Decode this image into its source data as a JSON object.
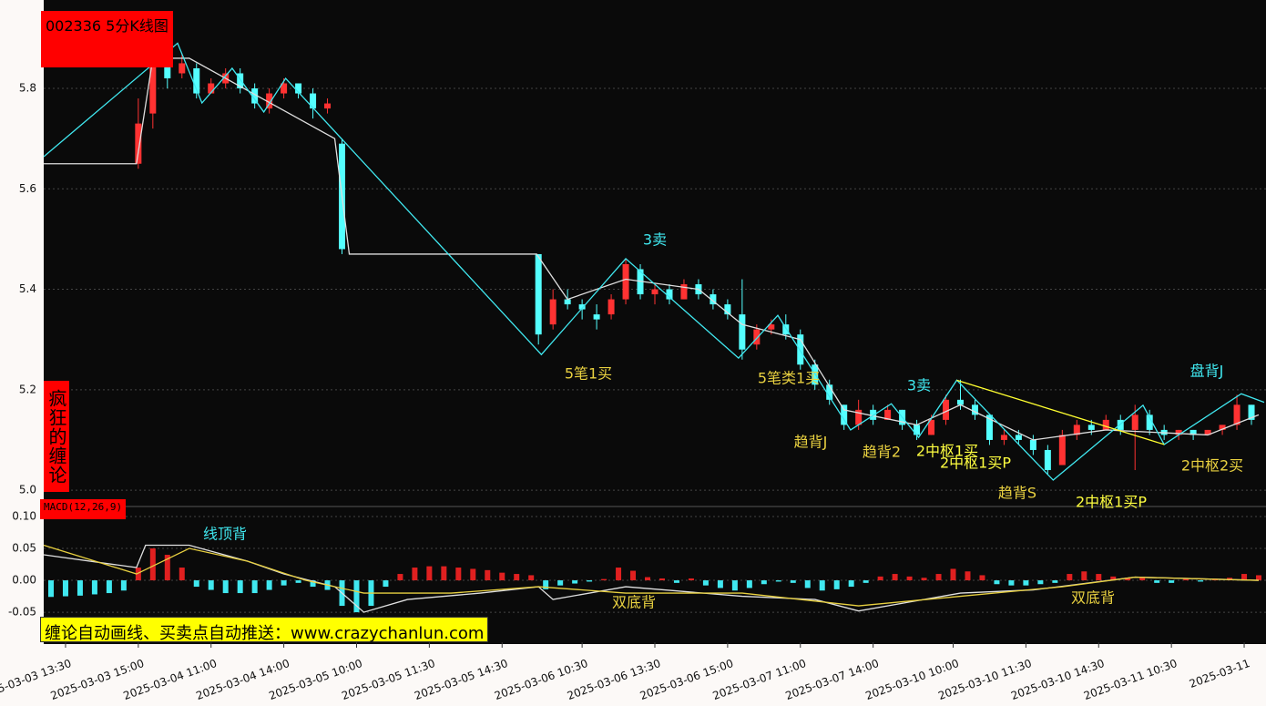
{
  "header": {
    "title": "002336 5分K线图",
    "side_title": "疯狂的缠论",
    "banner": "缠论自动画线、买卖点自动推送：www.crazychanlun.com"
  },
  "chart_data": [
    {
      "type": "candlestick",
      "xlim": [
        0,
        168
      ],
      "ylim": [
        4.982,
        5.976
      ],
      "yticks": [
        {
          "value": 5,
          "label": "5.0"
        },
        5.2,
        5.4,
        5.6,
        5.8
      ],
      "grid": true,
      "up_color": "#ff3232",
      "down_color": "#54ffff",
      "x": [
        13,
        15,
        17,
        19,
        21,
        23,
        25,
        27,
        29,
        31,
        33,
        35,
        37,
        39,
        41,
        68,
        70,
        72,
        74,
        76,
        78,
        80,
        82,
        84,
        86,
        88,
        90,
        92,
        94,
        96,
        98,
        100,
        102,
        104,
        106,
        108,
        110,
        112,
        114,
        116,
        118,
        120,
        122,
        124,
        126,
        128,
        130,
        132,
        134,
        136,
        138,
        140,
        142,
        144,
        146,
        148,
        150,
        152,
        154,
        156,
        158,
        160,
        162,
        164,
        166
      ],
      "open": [
        5.65,
        5.75,
        5.86,
        5.83,
        5.84,
        5.79,
        5.81,
        5.83,
        5.8,
        5.76,
        5.79,
        5.81,
        5.79,
        5.76,
        5.69,
        5.47,
        5.33,
        5.38,
        5.37,
        5.35,
        5.35,
        5.38,
        5.44,
        5.39,
        5.4,
        5.38,
        5.41,
        5.39,
        5.37,
        5.35,
        5.29,
        5.32,
        5.33,
        5.31,
        5.25,
        5.21,
        5.17,
        5.13,
        5.16,
        5.14,
        5.16,
        5.13,
        5.11,
        5.14,
        5.18,
        5.17,
        5.15,
        5.1,
        5.11,
        5.1,
        5.08,
        5.05,
        5.11,
        5.13,
        5.12,
        5.14,
        5.12,
        5.15,
        5.12,
        5.11,
        5.12,
        5.11,
        5.12,
        5.13,
        5.17
      ],
      "high": [
        5.78,
        5.9,
        5.88,
        5.87,
        5.85,
        5.82,
        5.84,
        5.84,
        5.81,
        5.8,
        5.82,
        5.81,
        5.8,
        5.78,
        5.7,
        5.47,
        5.4,
        5.4,
        5.38,
        5.37,
        5.39,
        5.46,
        5.45,
        5.41,
        5.41,
        5.42,
        5.42,
        5.4,
        5.38,
        5.42,
        5.33,
        5.34,
        5.35,
        5.32,
        5.26,
        5.22,
        5.17,
        5.18,
        5.17,
        5.17,
        5.16,
        5.14,
        5.15,
        5.19,
        5.22,
        5.18,
        5.15,
        5.12,
        5.12,
        5.11,
        5.09,
        5.12,
        5.14,
        5.14,
        5.15,
        5.15,
        5.17,
        5.16,
        5.13,
        5.12,
        5.12,
        5.12,
        5.13,
        5.19,
        5.17
      ],
      "low": [
        5.64,
        5.72,
        5.8,
        5.82,
        5.78,
        5.79,
        5.8,
        5.79,
        5.76,
        5.75,
        5.78,
        5.78,
        5.74,
        5.75,
        5.47,
        5.29,
        5.32,
        5.36,
        5.34,
        5.32,
        5.34,
        5.37,
        5.38,
        5.37,
        5.37,
        5.38,
        5.38,
        5.36,
        5.34,
        5.26,
        5.28,
        5.31,
        5.3,
        5.24,
        5.2,
        5.17,
        5.12,
        5.12,
        5.13,
        5.14,
        5.12,
        5.1,
        5.11,
        5.13,
        5.16,
        5.14,
        5.09,
        5.09,
        5.09,
        5.07,
        5.03,
        5.05,
        5.1,
        5.11,
        5.12,
        5.11,
        5.04,
        5.11,
        5.1,
        5.1,
        5.1,
        5.11,
        5.11,
        5.12,
        5.13
      ],
      "close": [
        5.73,
        5.86,
        5.82,
        5.85,
        5.79,
        5.81,
        5.83,
        5.8,
        5.77,
        5.79,
        5.81,
        5.79,
        5.76,
        5.77,
        5.48,
        5.31,
        5.38,
        5.37,
        5.36,
        5.34,
        5.38,
        5.45,
        5.39,
        5.4,
        5.38,
        5.41,
        5.39,
        5.37,
        5.35,
        5.28,
        5.32,
        5.33,
        5.31,
        5.25,
        5.21,
        5.18,
        5.13,
        5.16,
        5.14,
        5.16,
        5.13,
        5.11,
        5.14,
        5.18,
        5.17,
        5.15,
        5.1,
        5.11,
        5.1,
        5.08,
        5.04,
        5.11,
        5.13,
        5.12,
        5.14,
        5.12,
        5.15,
        5.12,
        5.11,
        5.12,
        5.11,
        5.12,
        5.13,
        5.17,
        5.14
      ],
      "overlays": [
        {
          "type": "line",
          "color": "#dddddd",
          "x": [
            0,
            12.75,
            15,
            20,
            30,
            40,
            42,
            67.75,
            72,
            80,
            90,
            96,
            104,
            110,
            120,
            126,
            136,
            146,
            160,
            167
          ],
          "values": [
            5.65,
            5.65,
            5.86,
            5.86,
            5.78,
            5.7,
            5.47,
            5.47,
            5.38,
            5.42,
            5.4,
            5.33,
            5.3,
            5.16,
            5.13,
            5.17,
            5.1,
            5.12,
            5.11,
            5.15
          ]
        },
        {
          "type": "line",
          "color": "#40e8f0",
          "x": [
            0,
            18.4,
            21.75,
            25.9,
            30.25,
            33.25,
            68.4,
            80,
            95.5,
            100.9,
            110.9,
            116.5,
            120.25,
            125.5,
            138.75,
            151.1,
            154,
            164.6,
            167.75
          ],
          "values": [
            5.664,
            5.89,
            5.771,
            5.84,
            5.753,
            5.82,
            5.27,
            5.461,
            5.263,
            5.348,
            5.12,
            5.172,
            5.105,
            5.219,
            5.02,
            5.169,
            5.091,
            5.192,
            5.175
          ]
        },
        {
          "type": "line",
          "color": "#ffff30",
          "x": [
            125.5,
            154
          ],
          "values": [
            5.219,
            5.091
          ]
        }
      ],
      "annotations": [
        {
          "text": "3卖",
          "color": "#40e8f0"
        },
        {
          "text": "5笔1买",
          "color": "#e8d040"
        },
        {
          "text": "5笔类1买",
          "color": "#e8d040"
        },
        {
          "text": "趋背J",
          "color": "#e8d040"
        },
        {
          "text": "3卖",
          "color": "#40e8f0"
        },
        {
          "text": "趋背2",
          "color": "#e8d040"
        },
        {
          "text": "2中枢1买",
          "color": "#ffff40"
        },
        {
          "text": "2中枢1买P",
          "color": "#ffff40"
        },
        {
          "text": "趋背S",
          "color": "#e8d040"
        },
        {
          "text": "2中枢1买P",
          "color": "#ffff40"
        },
        {
          "text": "2中枢2买",
          "color": "#e8d040"
        },
        {
          "text": "盘背J",
          "color": "#40e8f0"
        }
      ]
    },
    {
      "type": "macd",
      "title": "MACD(12,26,9)",
      "xlim": [
        0,
        168
      ],
      "ylim": [
        -0.097,
        0.1
      ],
      "yticks": [
        {
          "value": -0.05,
          "label": "-0.05"
        },
        {
          "value": 0,
          "label": "0.00"
        },
        {
          "value": 0.05,
          "label": "0.05"
        },
        {
          "value": 0.1,
          "label": "0.10"
        }
      ],
      "grid": true,
      "xticks": [
        {
          "value": 3,
          "label": "2025-03-03 13:30"
        },
        {
          "value": 13,
          "label": "2025-03-03 15:00"
        },
        {
          "value": 23,
          "label": "2025-03-04 11:00"
        },
        {
          "value": 33,
          "label": "2025-03-04 14:00"
        },
        {
          "value": 43,
          "label": "2025-03-05 10:00"
        },
        {
          "value": 53,
          "label": "2025-03-05 11:30"
        },
        {
          "value": 63,
          "label": "2025-03-05 14:30"
        },
        {
          "value": 74,
          "label": "2025-03-06 10:30"
        },
        {
          "value": 84,
          "label": "2025-03-06 13:30"
        },
        {
          "value": 94,
          "label": "2025-03-06 15:00"
        },
        {
          "value": 104,
          "label": "2025-03-07 11:00"
        },
        {
          "value": 114,
          "label": "2025-03-07 14:00"
        },
        {
          "value": 125,
          "label": "2025-03-10 10:00"
        },
        {
          "value": 135,
          "label": "2025-03-10 11:30"
        },
        {
          "value": 145,
          "label": "2025-03-10 14:30"
        },
        {
          "value": 155,
          "label": "2025-03-11 10:30"
        },
        {
          "value": 165,
          "label": "2025-03-11"
        }
      ],
      "up_color": "#e02020",
      "down_color": "#40e8f0",
      "x": [
        1,
        3,
        5,
        7,
        9,
        11,
        13,
        15,
        17,
        19,
        21,
        23,
        25,
        27,
        29,
        31,
        33,
        35,
        37,
        39,
        41,
        43,
        45,
        47,
        49,
        51,
        53,
        55,
        57,
        59,
        61,
        63,
        65,
        67,
        69,
        71,
        73,
        75,
        77,
        79,
        81,
        83,
        85,
        87,
        89,
        91,
        93,
        95,
        97,
        99,
        101,
        103,
        105,
        107,
        109,
        111,
        113,
        115,
        117,
        119,
        121,
        123,
        125,
        127,
        129,
        131,
        133,
        135,
        137,
        139,
        141,
        143,
        145,
        147,
        149,
        151,
        153,
        155,
        157,
        159,
        161,
        163,
        165,
        167
      ],
      "values": [
        -0.026,
        -0.025,
        -0.024,
        -0.022,
        -0.02,
        -0.016,
        0.02,
        0.05,
        0.04,
        0.02,
        -0.01,
        -0.015,
        -0.02,
        -0.02,
        -0.02,
        -0.015,
        -0.008,
        -0.004,
        -0.01,
        -0.015,
        -0.04,
        -0.05,
        -0.04,
        -0.01,
        0.01,
        0.02,
        0.022,
        0.022,
        0.02,
        0.018,
        0.016,
        0.012,
        0.01,
        0.008,
        -0.014,
        -0.008,
        -0.005,
        -0.002,
        0.002,
        0.02,
        0.015,
        0.005,
        0.003,
        -0.004,
        0.003,
        -0.008,
        -0.012,
        -0.016,
        -0.012,
        -0.006,
        -0.002,
        -0.004,
        -0.012,
        -0.016,
        -0.014,
        -0.01,
        -0.004,
        0.006,
        0.01,
        0.006,
        0.004,
        0.01,
        0.018,
        0.014,
        0.008,
        -0.006,
        -0.008,
        -0.008,
        -0.006,
        -0.004,
        0.01,
        0.014,
        0.01,
        0.006,
        0.004,
        0.004,
        -0.004,
        -0.004,
        0.002,
        -0.002,
        0.001,
        0.004,
        0.01,
        0.008
      ],
      "overlays": [
        {
          "type": "line",
          "color": "#e0e0e0",
          "x": [
            0,
            12.75,
            14,
            20,
            28,
            33,
            40,
            44,
            50,
            60,
            68,
            70,
            80,
            96,
            106,
            112,
            126,
            136,
            150,
            167
          ],
          "values": [
            0.04,
            0.02,
            0.055,
            0.055,
            0.03,
            0.01,
            -0.01,
            -0.05,
            -0.03,
            -0.02,
            -0.01,
            -0.03,
            -0.01,
            -0.025,
            -0.03,
            -0.048,
            -0.02,
            -0.015,
            0.005,
            0
          ]
        },
        {
          "type": "line",
          "color": "#e8d040",
          "x": [
            0,
            12.75,
            20,
            28,
            36,
            44,
            56,
            68,
            80,
            96,
            112,
            126,
            140,
            150,
            167
          ],
          "values": [
            0.055,
            0.01,
            0.05,
            0.03,
            0,
            -0.02,
            -0.02,
            -0.01,
            -0.02,
            -0.02,
            -0.04,
            -0.025,
            -0.01,
            0.005,
            0
          ]
        }
      ],
      "annotations": [
        {
          "text": "线顶背",
          "color": "#40e8f0"
        },
        {
          "text": "双底背",
          "color": "#e8d040"
        },
        {
          "text": "双底背",
          "color": "#e8d040"
        }
      ]
    }
  ]
}
